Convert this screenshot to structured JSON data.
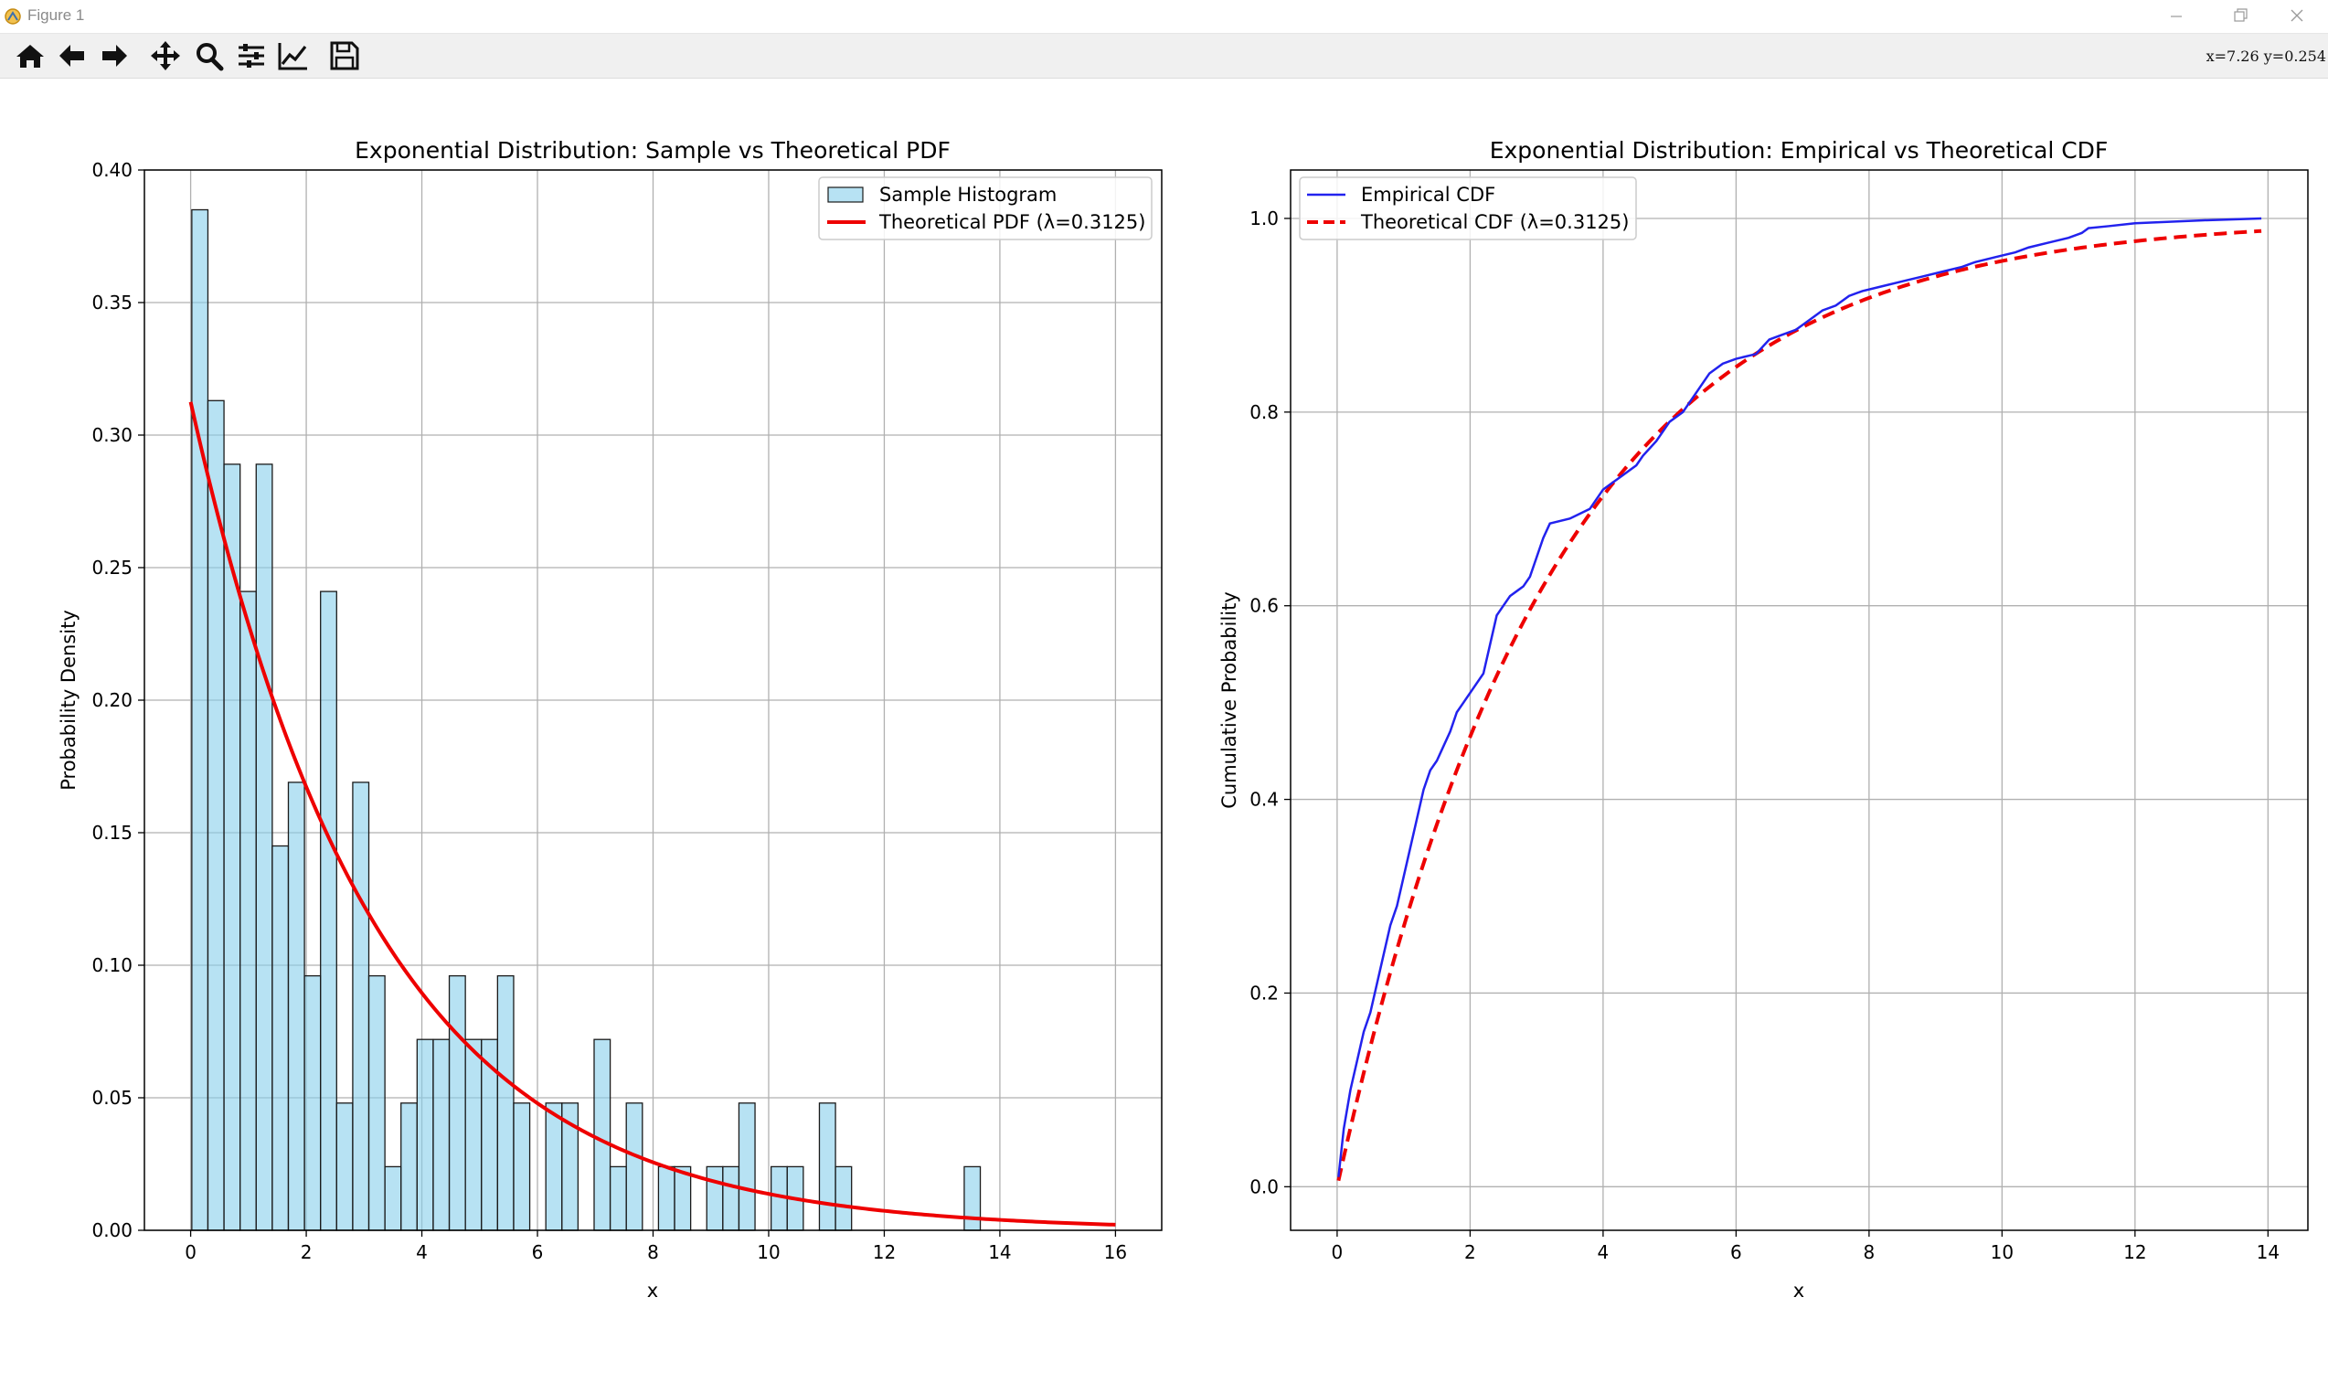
{
  "window": {
    "title": "Figure 1",
    "coords_readout": "x=7.26  y=0.254"
  },
  "toolbar": {
    "tools": [
      {
        "name": "home-icon",
        "tooltip": ""
      },
      {
        "name": "back-arrow-icon",
        "tooltip": ""
      },
      {
        "name": "forward-arrow-icon",
        "tooltip": ""
      },
      {
        "name": "pan-move-icon",
        "tooltip": ""
      },
      {
        "name": "zoom-magnifier-icon",
        "tooltip": ""
      },
      {
        "name": "configure-subplots-icon",
        "tooltip": ""
      },
      {
        "name": "edit-axis-curve-icon",
        "tooltip": ""
      },
      {
        "name": "save-floppy-icon",
        "tooltip": ""
      }
    ]
  },
  "colors": {
    "hist_fill": "#87CEEB",
    "hist_edge": "#1a1a1a",
    "pdf_line": "#ee0000",
    "ecdf_line": "#2222ee",
    "grid": "#b0b0b0"
  },
  "chart_data": [
    {
      "type": "bar",
      "title": "Exponential Distribution: Sample vs Theoretical PDF",
      "xlabel": "x",
      "ylabel": "Probability Density",
      "xlim": [
        -0.8,
        16.8
      ],
      "ylim": [
        0,
        0.4
      ],
      "xticks": [
        "0",
        "2",
        "4",
        "6",
        "8",
        "10",
        "12",
        "14",
        "16"
      ],
      "yticks": [
        "0.00",
        "0.05",
        "0.10",
        "0.15",
        "0.20",
        "0.25",
        "0.30",
        "0.35",
        "0.40"
      ],
      "grid": true,
      "legend_position": "top-right",
      "legend": [
        "Sample Histogram",
        "Theoretical PDF (λ=0.3125)"
      ],
      "histogram": {
        "bin_start": 0.02,
        "bin_width": 0.2784,
        "values": [
          0.385,
          0.313,
          0.289,
          0.241,
          0.289,
          0.145,
          0.169,
          0.096,
          0.241,
          0.048,
          0.169,
          0.096,
          0.024,
          0.048,
          0.072,
          0.072,
          0.096,
          0.072,
          0.072,
          0.096,
          0.048,
          0,
          0.048,
          0.048,
          0,
          0.072,
          0.024,
          0.048,
          0,
          0.024,
          0.024,
          0,
          0.024,
          0.024,
          0.048,
          0,
          0.024,
          0.024,
          0,
          0.048,
          0.024,
          0,
          0,
          0,
          0,
          0,
          0,
          0,
          0.024
        ]
      },
      "theoretical": {
        "lambda": 0.3125,
        "x_range": [
          0,
          16
        ]
      }
    },
    {
      "type": "line",
      "title": "Exponential Distribution: Empirical vs Theoretical CDF",
      "xlabel": "x",
      "ylabel": "Cumulative Probability",
      "xlim": [
        -0.7,
        14.6
      ],
      "ylim": [
        -0.045,
        1.05
      ],
      "xticks": [
        "0",
        "2",
        "4",
        "6",
        "8",
        "10",
        "12",
        "14"
      ],
      "yticks": [
        "0.0",
        "0.2",
        "0.4",
        "0.6",
        "0.8",
        "1.0"
      ],
      "grid": true,
      "legend_position": "top-left",
      "legend": [
        "Empirical CDF",
        "Theoretical CDF (λ=0.3125)"
      ],
      "series": [
        {
          "name": "Empirical CDF",
          "x": [
            0.02,
            0.1,
            0.2,
            0.3,
            0.4,
            0.5,
            0.6,
            0.7,
            0.8,
            0.9,
            1.0,
            1.1,
            1.2,
            1.3,
            1.4,
            1.5,
            1.6,
            1.7,
            1.8,
            1.9,
            2.0,
            2.2,
            2.3,
            2.4,
            2.5,
            2.6,
            2.7,
            2.8,
            2.9,
            3.0,
            3.1,
            3.2,
            3.5,
            3.8,
            3.9,
            4.0,
            4.1,
            4.2,
            4.3,
            4.5,
            4.6,
            4.8,
            4.9,
            5.0,
            5.2,
            5.4,
            5.5,
            5.6,
            5.8,
            6.0,
            6.3,
            6.5,
            6.7,
            6.9,
            7.1,
            7.3,
            7.5,
            7.7,
            7.9,
            8.2,
            8.5,
            8.8,
            9.1,
            9.4,
            9.6,
            9.9,
            10.2,
            10.4,
            10.7,
            11.0,
            11.2,
            11.3,
            11.6,
            12.0,
            13.0,
            13.9
          ],
          "y": [
            0.01,
            0.06,
            0.1,
            0.13,
            0.16,
            0.18,
            0.21,
            0.24,
            0.27,
            0.29,
            0.32,
            0.35,
            0.38,
            0.41,
            0.43,
            0.44,
            0.455,
            0.47,
            0.49,
            0.5,
            0.51,
            0.53,
            0.56,
            0.59,
            0.6,
            0.61,
            0.615,
            0.62,
            0.63,
            0.65,
            0.67,
            0.685,
            0.69,
            0.7,
            0.71,
            0.72,
            0.725,
            0.73,
            0.735,
            0.745,
            0.755,
            0.77,
            0.78,
            0.79,
            0.8,
            0.82,
            0.83,
            0.84,
            0.85,
            0.855,
            0.86,
            0.875,
            0.88,
            0.885,
            0.895,
            0.905,
            0.91,
            0.92,
            0.925,
            0.93,
            0.935,
            0.94,
            0.945,
            0.95,
            0.955,
            0.96,
            0.965,
            0.97,
            0.975,
            0.98,
            0.985,
            0.99,
            0.992,
            0.995,
            0.998,
            1.0
          ]
        },
        {
          "name": "Theoretical CDF (λ=0.3125)",
          "lambda": 0.3125,
          "x_range": [
            0.02,
            13.9
          ]
        }
      ]
    }
  ]
}
